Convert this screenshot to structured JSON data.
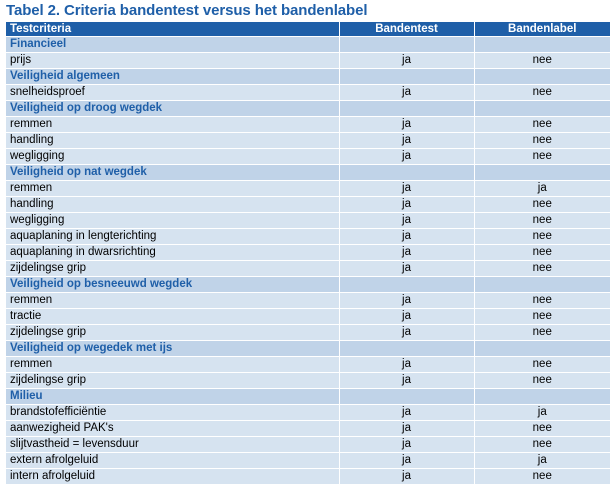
{
  "title": "Tabel 2. Criteria bandentest versus het bandenlabel",
  "headers": [
    "Testcriteria",
    "Bandentest",
    "Bandenlabel"
  ],
  "colors": {
    "header_bg": "#1f5fa8",
    "section_text": "#1f5fa8",
    "ja": "#1fa01f",
    "nee": "#e00000",
    "row_bg": "#d6e3f0",
    "section_bg": "#c0d3e8"
  },
  "sections": [
    {
      "title": "Financieel",
      "rows": [
        {
          "label": "prijs",
          "test": "ja",
          "label_val": "nee"
        }
      ]
    },
    {
      "title": "Veiligheid algemeen",
      "rows": [
        {
          "label": "snelheidsproef",
          "test": "ja",
          "label_val": "nee"
        }
      ]
    },
    {
      "title": "Veiligheid op droog wegdek",
      "rows": [
        {
          "label": "remmen",
          "test": "ja",
          "label_val": "nee"
        },
        {
          "label": "handling",
          "test": "ja",
          "label_val": "nee"
        },
        {
          "label": "wegligging",
          "test": "ja",
          "label_val": "nee"
        }
      ]
    },
    {
      "title": "Veiligheid op nat wegdek",
      "rows": [
        {
          "label": "remmen",
          "test": "ja",
          "label_val": "ja"
        },
        {
          "label": "handling",
          "test": "ja",
          "label_val": "nee"
        },
        {
          "label": "wegligging",
          "test": "ja",
          "label_val": "nee"
        },
        {
          "label": "aquaplaning in lengterichting",
          "test": "ja",
          "label_val": "nee"
        },
        {
          "label": "aquaplaning in dwarsrichting",
          "test": "ja",
          "label_val": "nee"
        },
        {
          "label": "zijdelingse grip",
          "test": "ja",
          "label_val": "nee"
        }
      ]
    },
    {
      "title": "Veiligheid op besneeuwd wegdek",
      "rows": [
        {
          "label": "remmen",
          "test": "ja",
          "label_val": "nee"
        },
        {
          "label": "tractie",
          "test": "ja",
          "label_val": "nee"
        },
        {
          "label": "zijdelingse grip",
          "test": "ja",
          "label_val": "nee"
        }
      ]
    },
    {
      "title": "Veiligheid op wegedek met ijs",
      "rows": [
        {
          "label": "remmen",
          "test": "ja",
          "label_val": "nee"
        },
        {
          "label": "zijdelingse grip",
          "test": "ja",
          "label_val": "nee"
        }
      ]
    },
    {
      "title": "Milieu",
      "rows": [
        {
          "label": "brandstofefficiëntie",
          "test": "ja",
          "label_val": "ja"
        },
        {
          "label": "aanwezigheid PAK's",
          "test": "ja",
          "label_val": "nee"
        },
        {
          "label": "slijtvastheid = levensduur",
          "test": "ja",
          "label_val": "nee"
        },
        {
          "label": "extern afrolgeluid",
          "test": "ja",
          "label_val": "ja"
        },
        {
          "label": "intern afrolgeluid",
          "test": "ja",
          "label_val": "nee"
        }
      ]
    }
  ]
}
